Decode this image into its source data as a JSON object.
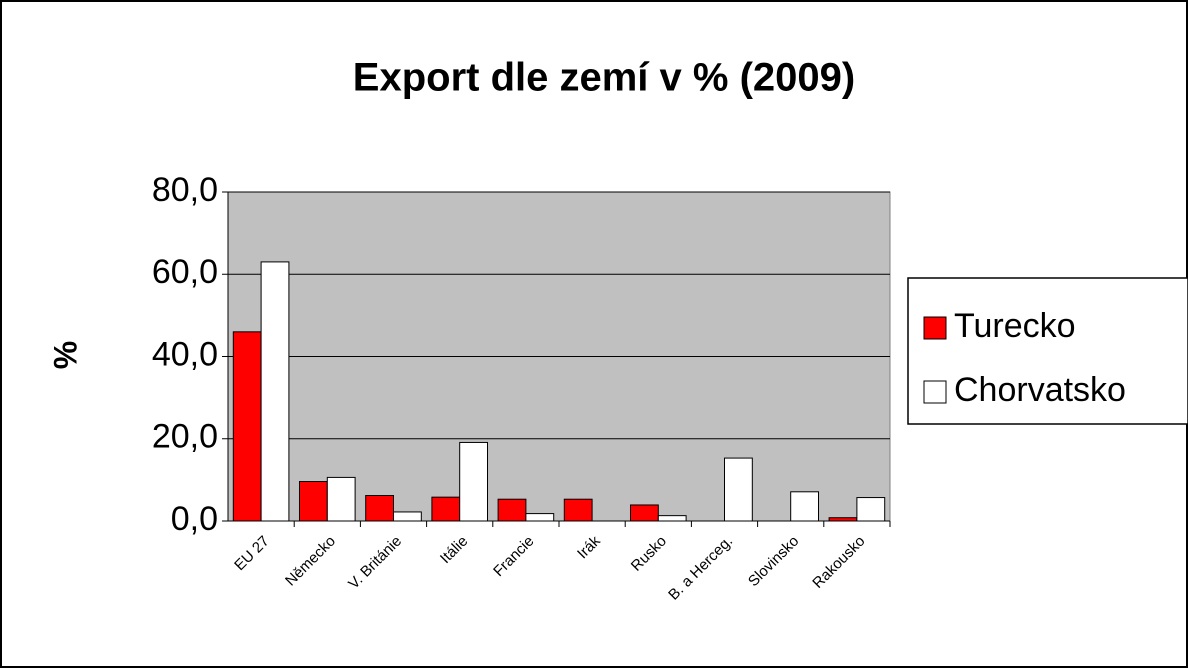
{
  "chart_data": {
    "type": "bar",
    "title": "Export dle zemí v % (2009)",
    "y_label": "%",
    "categories": [
      "EU 27",
      "Německo",
      "V. Británie",
      "Itálie",
      "Francie",
      "Irák",
      "Rusko",
      "B. a Herceg.",
      "Slovinsko",
      "Rakousko"
    ],
    "series": [
      {
        "name": "Turecko",
        "color": "#ff0000",
        "values": [
          46.0,
          9.6,
          6.2,
          5.8,
          5.3,
          5.3,
          3.9,
          null,
          null,
          0.8
        ]
      },
      {
        "name": "Chorvatsko",
        "color": "#ffffff",
        "values": [
          63.0,
          10.6,
          2.2,
          19.1,
          1.8,
          null,
          1.3,
          15.3,
          7.1,
          5.7
        ]
      }
    ],
    "ylim": [
      0,
      80
    ],
    "yticks": [
      {
        "value": 0,
        "label": "0,0"
      },
      {
        "value": 20,
        "label": "20,0"
      },
      {
        "value": 40,
        "label": "40,0"
      },
      {
        "value": 60,
        "label": "60,0"
      },
      {
        "value": 80,
        "label": "80,0"
      }
    ],
    "grid": true,
    "legend": "right"
  }
}
